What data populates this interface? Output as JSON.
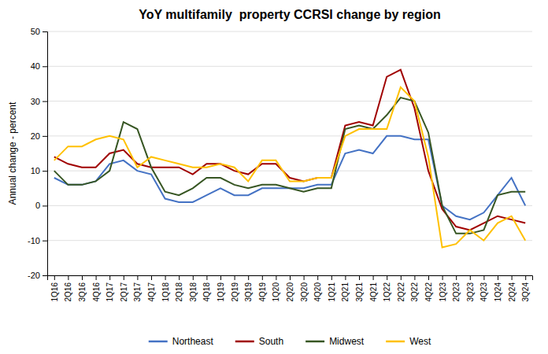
{
  "chart_data": {
    "type": "line",
    "title": "YoY multifamily  property CCRSI change by region",
    "ylabel": "Annual change - percent",
    "categories": [
      "1Q16",
      "2Q16",
      "3Q16",
      "4Q16",
      "1Q17",
      "2Q17",
      "3Q17",
      "4Q17",
      "1Q18",
      "2Q18",
      "3Q18",
      "4Q18",
      "1Q19",
      "2Q19",
      "3Q19",
      "4Q19",
      "1Q20",
      "2Q20",
      "3Q20",
      "4Q20",
      "1Q21",
      "2Q21",
      "3Q21",
      "4Q21",
      "1Q22",
      "2Q22",
      "3Q22",
      "4Q22",
      "1Q23",
      "2Q23",
      "3Q23",
      "4Q23",
      "1Q24",
      "2Q24",
      "3Q24"
    ],
    "series": [
      {
        "name": "Northeast",
        "color": "#4472C4",
        "values": [
          8,
          6,
          6,
          7,
          12,
          13,
          10,
          9,
          2,
          1,
          1,
          3,
          5,
          3,
          3,
          5,
          5,
          5,
          5,
          6,
          6,
          15,
          16,
          15,
          20,
          20,
          19,
          19,
          0,
          -3,
          -4,
          -2,
          3,
          8,
          0
        ]
      },
      {
        "name": "South",
        "color": "#A00000",
        "values": [
          14,
          12,
          11,
          11,
          15,
          16,
          12,
          11,
          11,
          11,
          9,
          12,
          12,
          10,
          9,
          12,
          12,
          8,
          7,
          8,
          8,
          23,
          24,
          23,
          37,
          39,
          28,
          10,
          -1,
          -6,
          -7,
          -5,
          -3,
          -4,
          -5
        ]
      },
      {
        "name": "Midwest",
        "color": "#375623",
        "values": [
          10,
          6,
          6,
          7,
          10,
          24,
          22,
          11,
          4,
          3,
          5,
          8,
          8,
          6,
          5,
          6,
          6,
          5,
          4,
          5,
          5,
          22,
          23,
          22,
          26,
          31,
          30,
          21,
          0,
          -8,
          -8,
          -7,
          3,
          4,
          4
        ]
      },
      {
        "name": "West",
        "color": "#FFC000",
        "values": [
          13,
          17,
          17,
          19,
          20,
          19,
          11,
          14,
          13,
          12,
          11,
          11,
          12,
          11,
          7,
          13,
          13,
          7,
          7,
          8,
          8,
          20,
          22,
          22,
          22,
          34,
          30,
          14,
          -12,
          -11,
          -7,
          -10,
          -5,
          -3,
          -10
        ]
      }
    ],
    "ylim": [
      -20,
      50
    ],
    "yticks": [
      -20,
      -10,
      0,
      10,
      20,
      30,
      40,
      50
    ],
    "grid": true,
    "legend": "bottom"
  }
}
